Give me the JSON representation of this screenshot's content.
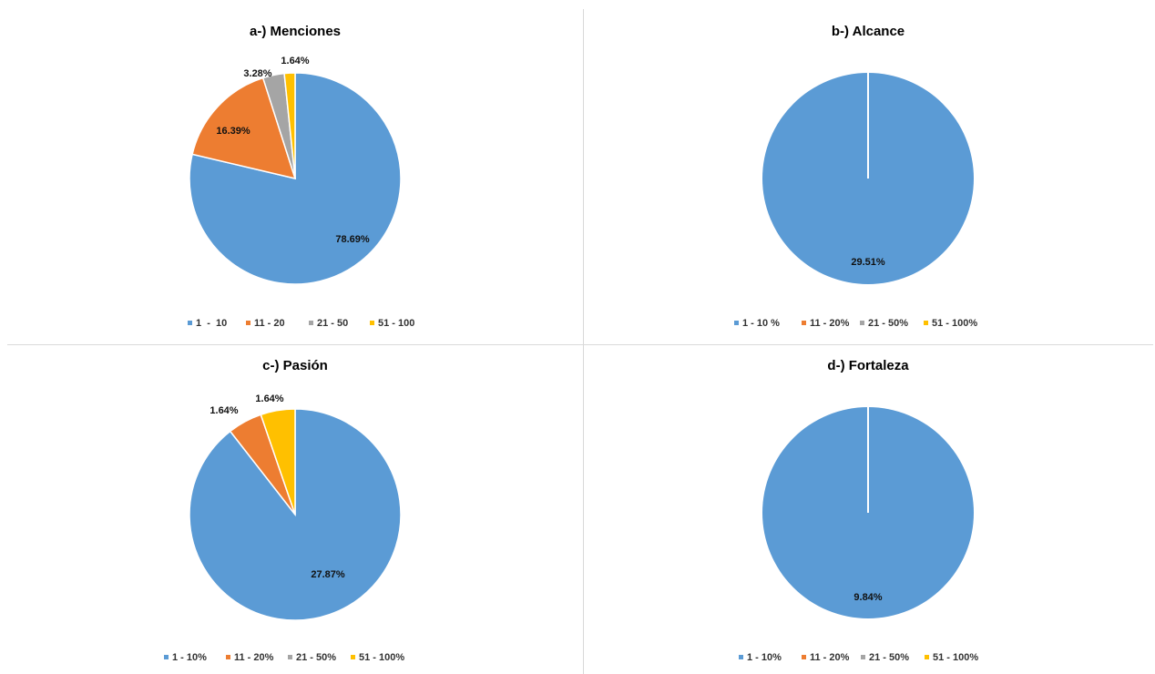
{
  "colors": {
    "c1": "#5B9BD5",
    "c2": "#ED7D31",
    "c3": "#A5A5A5",
    "c4": "#FFC000"
  },
  "chart_data": [
    {
      "type": "pie",
      "title": "a-) Menciones",
      "categories": [
        "1  -  10",
        "11 - 20",
        "21 - 50",
        "51 - 100"
      ],
      "values": [
        78.69,
        16.39,
        3.28,
        1.64
      ],
      "data_labels": [
        "78.69%",
        "16.39%",
        "3.28%",
        "1.64%"
      ],
      "legend": "bottom"
    },
    {
      "type": "pie",
      "title": "b-) Alcance",
      "categories": [
        "1 - 10 %",
        "11 - 20%",
        "21 - 50%",
        "51 - 100%"
      ],
      "values": [
        29.51,
        0,
        0,
        0
      ],
      "data_labels": [
        "29.51%",
        null,
        null,
        null
      ],
      "legend": "bottom"
    },
    {
      "type": "pie",
      "title": "c-) Pasión",
      "categories": [
        "1 - 10%",
        "11 - 20%",
        "21 - 50%",
        "51 - 100%"
      ],
      "values": [
        27.87,
        1.64,
        0,
        1.64
      ],
      "data_labels": [
        "27.87%",
        "1.64%",
        null,
        "1.64%"
      ],
      "legend": "bottom"
    },
    {
      "type": "pie",
      "title": "d-) Fortaleza",
      "categories": [
        "1 - 10%",
        "11 - 20%",
        "21 - 50%",
        "51 - 100%"
      ],
      "values": [
        9.84,
        0,
        0,
        0
      ],
      "data_labels": [
        "9.84%",
        null,
        null,
        null
      ],
      "legend": "bottom"
    }
  ]
}
